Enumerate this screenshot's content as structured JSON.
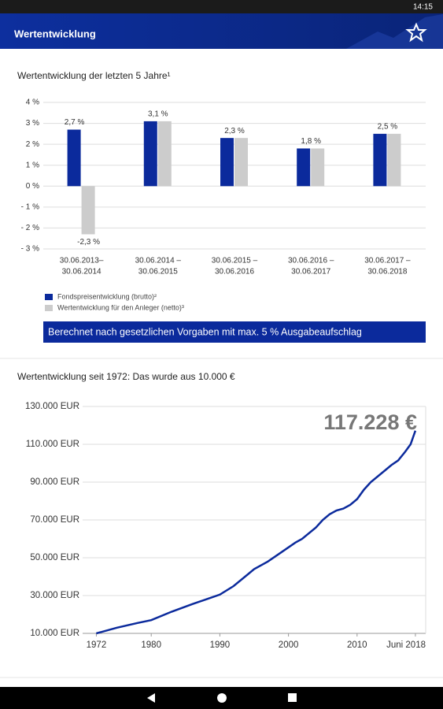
{
  "status_bar": {
    "time": "14:15"
  },
  "app_bar": {
    "title": "Wertentwicklung"
  },
  "chart_data": [
    {
      "type": "bar",
      "title": "Wertentwicklung der letzten 5 Jahre¹",
      "categories": [
        [
          "30.06.2013–",
          "30.06.2014"
        ],
        [
          "30.06.2014 –",
          "30.06.2015"
        ],
        [
          "30.06.2015 –",
          "30.06.2016"
        ],
        [
          "30.06.2016 –",
          "30.06.2017"
        ],
        [
          "30.06.2017 –",
          "30.06.2018"
        ]
      ],
      "series": [
        {
          "name": "Fondspreisentwicklung (brutto)²",
          "color": "#0b2a9c",
          "values": [
            2.7,
            3.1,
            2.3,
            1.8,
            2.5
          ],
          "value_labels": [
            "2,7 %",
            "3,1 %",
            "2,3 %",
            "1,8 %",
            "2,5 %"
          ]
        },
        {
          "name": "Wertentwicklung für den Anleger (netto)³",
          "color": "#cccccc",
          "values": [
            -2.3,
            3.1,
            2.3,
            1.8,
            2.5
          ],
          "value_labels": [
            "-2,3 %",
            null,
            null,
            null,
            null
          ]
        }
      ],
      "ylim": [
        -3,
        4
      ],
      "yticks": [
        {
          "value": 4,
          "label": "4 %"
        },
        {
          "value": 3,
          "label": "3 %"
        },
        {
          "value": 2,
          "label": "2 %"
        },
        {
          "value": 1,
          "label": "1 %"
        },
        {
          "value": 0,
          "label": "0 %"
        },
        {
          "value": -1,
          "label": "- 1 %"
        },
        {
          "value": -2,
          "label": "- 2 %"
        },
        {
          "value": -3,
          "label": "- 3 %"
        }
      ],
      "grid": true,
      "note": "Berechnet nach gesetzlichen Vorgaben mit max. 5 % Ausgabeaufschlag"
    },
    {
      "type": "line",
      "title": "Wertentwicklung seit 1972: Das wurde aus 10.000 €",
      "x": [
        1972,
        1975,
        1978,
        1980,
        1983,
        1986,
        1988,
        1990,
        1992,
        1994,
        1995,
        1997,
        1999,
        2001,
        2002,
        2004,
        2005,
        2006,
        2007,
        2008,
        2009,
        2010,
        2011,
        2012,
        2014,
        2015,
        2016,
        2017,
        2017.8,
        2018.5
      ],
      "values": [
        10000,
        13000,
        15500,
        17000,
        21500,
        25500,
        28000,
        30500,
        35000,
        41000,
        44000,
        48000,
        53000,
        58000,
        60000,
        66000,
        70000,
        73000,
        75000,
        76000,
        78000,
        81000,
        86000,
        90000,
        96000,
        99000,
        101500,
        106000,
        110000,
        117228
      ],
      "color": "#0b2a9c",
      "xlim": [
        1970,
        2020
      ],
      "xticks": [
        1972,
        1980,
        1990,
        2000,
        2010,
        {
          "value": 2018.5,
          "label": "Juni 2018"
        }
      ],
      "ylim": [
        10000,
        130000
      ],
      "yticks": [
        {
          "value": 130000,
          "label": "130.000 EUR"
        },
        {
          "value": 110000,
          "label": "110.000 EUR"
        },
        {
          "value": 90000,
          "label": "90.000 EUR"
        },
        {
          "value": 70000,
          "label": "70.000 EUR"
        },
        {
          "value": 50000,
          "label": "50.000 EUR"
        },
        {
          "value": 30000,
          "label": "30.000 EUR"
        },
        {
          "value": 10000,
          "label": "10.000 EUR"
        }
      ],
      "grid": true,
      "annotation": "117.228 €"
    }
  ]
}
